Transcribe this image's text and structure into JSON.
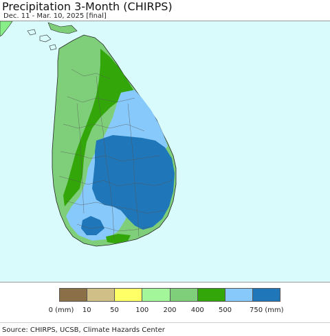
{
  "title": "Precipitation 3-Month (CHIRPS)",
  "subtitle": "Dec. 11 - Mar. 10, 2025 [final]",
  "legend": {
    "bins": [
      {
        "label": "0 (mm)",
        "color": "#8b6f47"
      },
      {
        "label": "10",
        "color": "#d0bf86"
      },
      {
        "label": "50",
        "color": "#ffff66"
      },
      {
        "label": "100",
        "color": "#a3f79a"
      },
      {
        "label": "200",
        "color": "#7fcf7a"
      },
      {
        "label": "400",
        "color": "#33a60a"
      },
      {
        "label": "500",
        "color": "#87c9fa"
      },
      {
        "label": "750 (mm)",
        "color": "#1f76b8"
      }
    ]
  },
  "map": {
    "region": "Sri Lanka",
    "ocean_color": "#d9fbfb",
    "mainland_color": "#88ee88"
  },
  "source": "Source: CHIRPS, UCSB, Climate Hazards Center"
}
